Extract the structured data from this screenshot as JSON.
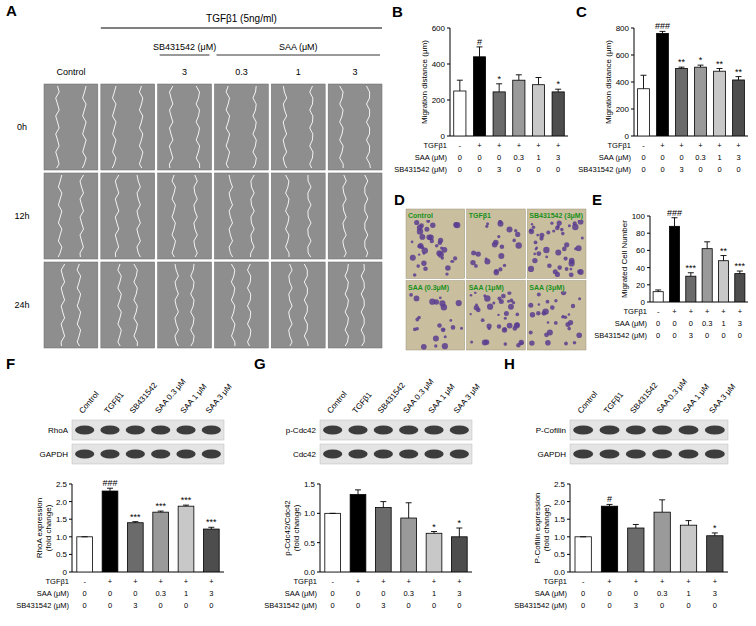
{
  "chart_data": [
    {
      "type": "bar",
      "title": "B",
      "ylabel": "Migration distance (μm)",
      "categories": [
        null,
        null,
        null,
        null,
        null,
        null
      ],
      "values": [
        250,
        440,
        245,
        310,
        285,
        245
      ],
      "errors": [
        60,
        55,
        45,
        30,
        40,
        15
      ],
      "significance": [
        null,
        "#",
        "*",
        null,
        null,
        "*"
      ],
      "colors": [
        "#ffffff",
        "#000000",
        "#6b6b6b",
        "#9a9a9a",
        "#c8c8c8",
        "#4d4d4d"
      ],
      "ylim": [
        0,
        600
      ],
      "yticks": [
        0,
        200,
        400,
        600
      ],
      "treatment_table": {
        "rows": [
          {
            "label": "TGFβ1",
            "cells": [
              "-",
              "+",
              "+",
              "+",
              "+",
              "+"
            ]
          },
          {
            "label": "SAA (μM)",
            "cells": [
              "0",
              "0",
              "0",
              "0.3",
              "1",
              "3"
            ]
          },
          {
            "label": "SB431542 (μM)",
            "cells": [
              "0",
              "0",
              "3",
              "0",
              "0",
              "0"
            ]
          }
        ]
      }
    },
    {
      "type": "bar",
      "title": "C",
      "ylabel": "Migration distance (μm)",
      "categories": [
        null,
        null,
        null,
        null,
        null,
        null
      ],
      "values": [
        350,
        760,
        500,
        510,
        480,
        415
      ],
      "errors": [
        100,
        15,
        10,
        15,
        20,
        25
      ],
      "significance": [
        null,
        "###",
        "**",
        "*",
        "**",
        "**"
      ],
      "colors": [
        "#ffffff",
        "#000000",
        "#6b6b6b",
        "#9a9a9a",
        "#c8c8c8",
        "#4d4d4d"
      ],
      "ylim": [
        0,
        800
      ],
      "yticks": [
        0,
        200,
        400,
        600,
        800
      ],
      "treatment_table": {
        "rows": [
          {
            "label": "TGFβ1",
            "cells": [
              "-",
              "+",
              "+",
              "+",
              "+",
              "+"
            ]
          },
          {
            "label": "SAA (μM)",
            "cells": [
              "0",
              "0",
              "0",
              "0.3",
              "1",
              "3"
            ]
          },
          {
            "label": "SB431542 (μM)",
            "cells": [
              "0",
              "0",
              "3",
              "0",
              "0",
              "0"
            ]
          }
        ]
      }
    },
    {
      "type": "bar",
      "title": "E",
      "ylabel": "Migrated Cell Number",
      "categories": [
        null,
        null,
        null,
        null,
        null,
        null
      ],
      "values": [
        12,
        88,
        30,
        62,
        48,
        33
      ],
      "errors": [
        2,
        10,
        4,
        8,
        6,
        3
      ],
      "significance": [
        null,
        "###",
        "***",
        null,
        "**",
        "***"
      ],
      "colors": [
        "#ffffff",
        "#000000",
        "#6b6b6b",
        "#9a9a9a",
        "#c8c8c8",
        "#4d4d4d"
      ],
      "ylim": [
        0,
        100
      ],
      "yticks": [
        0,
        20,
        40,
        60,
        80,
        100
      ],
      "treatment_table": {
        "rows": [
          {
            "label": "TGFβ1",
            "cells": [
              "-",
              "+",
              "+",
              "+",
              "+",
              "+"
            ]
          },
          {
            "label": "SAA (μM)",
            "cells": [
              "0",
              "0",
              "0",
              "0.3",
              "1",
              "3"
            ]
          },
          {
            "label": "SB431542 (μM)",
            "cells": [
              "0",
              "0",
              "3",
              "0",
              "0",
              "0"
            ]
          }
        ]
      }
    },
    {
      "type": "bar",
      "title": "F",
      "ylabel": "RhoA expression (fold change)",
      "categories": [
        null,
        null,
        null,
        null,
        null,
        null
      ],
      "values": [
        1,
        2.3,
        1.4,
        1.7,
        1.87,
        1.22
      ],
      "errors": [
        0,
        0.08,
        0.03,
        0.03,
        0.03,
        0.05
      ],
      "significance": [
        null,
        "###",
        "***",
        "***",
        "***",
        "***"
      ],
      "colors": [
        "#ffffff",
        "#000000",
        "#6b6b6b",
        "#9a9a9a",
        "#c8c8c8",
        "#4d4d4d"
      ],
      "ylim": [
        0,
        2.5
      ],
      "yticks": [
        0,
        0.5,
        {
          "value": 1,
          "label": "1.0"
        },
        1.5,
        {
          "value": 2,
          "label": "2.0"
        },
        2.5
      ],
      "blot": {
        "lanes": [
          "Control",
          "TGFβ1",
          "SB431542",
          "SAA 0.3 μM",
          "SAA 1 μM",
          "SAA 3 μM"
        ],
        "bands": [
          "RhoA",
          "GAPDH"
        ]
      },
      "treatment_table": {
        "rows": [
          {
            "label": "TGFβ1",
            "cells": [
              "-",
              "+",
              "+",
              "+",
              "+",
              "+"
            ]
          },
          {
            "label": "SAA (μM)",
            "cells": [
              "0",
              "0",
              "0",
              "0.3",
              "1",
              "3"
            ]
          },
          {
            "label": "SB431542 (μM)",
            "cells": [
              "0",
              "0",
              "3",
              "0",
              "0",
              "0"
            ]
          }
        ]
      }
    },
    {
      "type": "bar",
      "title": "G",
      "ylabel": "p-Cdc42/Cdc42 (fold change)",
      "categories": [
        null,
        null,
        null,
        null,
        null,
        null
      ],
      "values": [
        1,
        1.32,
        1.1,
        0.92,
        0.66,
        0.6
      ],
      "errors": [
        0,
        0.08,
        0.1,
        0.26,
        0.03,
        0.15
      ],
      "significance": [
        null,
        null,
        null,
        null,
        "*",
        "*"
      ],
      "colors": [
        "#ffffff",
        "#000000",
        "#6b6b6b",
        "#9a9a9a",
        "#c8c8c8",
        "#4d4d4d"
      ],
      "ylim": [
        0,
        1.5
      ],
      "yticks": [
        {
          "value": 0,
          "label": "0.0"
        },
        0.5,
        {
          "value": 1,
          "label": "1.0"
        },
        1.5
      ],
      "blot": {
        "lanes": [
          "Control",
          "TGFβ1",
          "SB431542",
          "SAA 0.3 μM",
          "SAA 1 μM",
          "SAA 3 μM"
        ],
        "bands": [
          "p-Cdc42",
          "Cdc42"
        ]
      },
      "treatment_table": {
        "rows": [
          {
            "label": "TGFβ1",
            "cells": [
              "-",
              "+",
              "+",
              "+",
              "+",
              "+"
            ]
          },
          {
            "label": "SAA (μM)",
            "cells": [
              "0",
              "0",
              "0",
              "0.3",
              "1",
              "3"
            ]
          },
          {
            "label": "SB431542 (μM)",
            "cells": [
              "0",
              "0",
              "3",
              "0",
              "0",
              "0"
            ]
          }
        ]
      }
    },
    {
      "type": "bar",
      "title": "H",
      "ylabel": "P-Cofilin expression (fold change)",
      "categories": [
        null,
        null,
        null,
        null,
        null,
        null
      ],
      "values": [
        1,
        1.87,
        1.25,
        1.7,
        1.33,
        1.03
      ],
      "errors": [
        0,
        0.05,
        0.1,
        0.35,
        0.13,
        0.08
      ],
      "significance": [
        null,
        "#",
        null,
        null,
        null,
        "*"
      ],
      "colors": [
        "#ffffff",
        "#000000",
        "#6b6b6b",
        "#9a9a9a",
        "#c8c8c8",
        "#4d4d4d"
      ],
      "ylim": [
        0,
        2.5
      ],
      "yticks": [
        {
          "value": 0,
          "label": "0.0"
        },
        0.5,
        {
          "value": 1,
          "label": "1.0"
        },
        1.5,
        {
          "value": 2,
          "label": "2.0"
        },
        2.5
      ],
      "blot": {
        "lanes": [
          "Control",
          "TGFβ1",
          "SB431542",
          "SAA 0.3 μM",
          "SAA 1 μM",
          "SAA 3 μM"
        ],
        "bands": [
          "P-Cofilin",
          "GAPDH"
        ]
      },
      "treatment_table": {
        "rows": [
          {
            "label": "TGFβ1",
            "cells": [
              "-",
              "+",
              "+",
              "+",
              "+",
              "+"
            ]
          },
          {
            "label": "SAA (μM)",
            "cells": [
              "0",
              "0",
              "0",
              "0.3",
              "1",
              "3"
            ]
          },
          {
            "label": "SB431542 (μM)",
            "cells": [
              "0",
              "0",
              "3",
              "0",
              "0",
              "0"
            ]
          }
        ]
      }
    }
  ],
  "panel_A": {
    "label": "A",
    "header": "TGFβ1 (5ng/ml)",
    "control": "Control",
    "groups": [
      {
        "label": "SB431542 (μM)",
        "columns": [
          "3"
        ]
      },
      {
        "label": "SAA (μM)",
        "columns": [
          "0.3",
          "1",
          "3"
        ]
      }
    ],
    "rows": [
      "0h",
      "12h",
      "24h"
    ]
  },
  "panel_D": {
    "label": "D",
    "images": [
      "Control",
      "TGFβ1",
      "SB431542 (3μM)",
      "SAA (0.3μM)",
      "SAA (1μM)",
      "SAA (3μM)"
    ]
  }
}
